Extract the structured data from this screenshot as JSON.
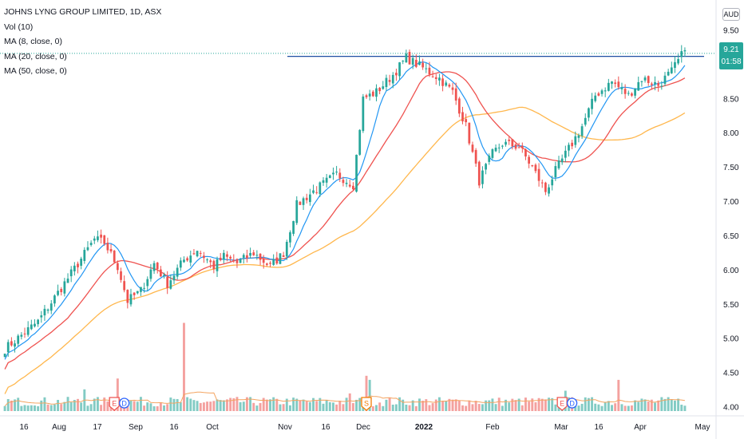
{
  "legend": {
    "title": "JOHNS LYNG GROUP LIMITED, 1D, ASX",
    "vol": "Vol (10)",
    "ma8": "MA (8, close, 0)",
    "ma20": "MA (20, close, 0)",
    "ma50": "MA (50, close, 0)"
  },
  "currency": "AUD",
  "last_price": {
    "price": "9.21",
    "countdown": "01:58"
  },
  "colors": {
    "up": "#26a69a",
    "down": "#ef5350",
    "up_vol": "#82cbc4",
    "down_vol": "#f4a19f",
    "ma8": "#2196f3",
    "ma20": "#ef5350",
    "ma50": "#ffb74d",
    "vol_ma": "#f4a460",
    "resistance": "#1e4fa3",
    "price_line": "#26a69a",
    "event_e": "#ef5350",
    "event_d": "#2962ff",
    "event_s": "#f57c00"
  },
  "chart_data": {
    "type": "candlestick",
    "y_ticks": [
      "9.50",
      "9.00",
      "8.50",
      "8.00",
      "7.50",
      "7.00",
      "6.50",
      "6.00",
      "5.50",
      "5.00",
      "4.50",
      "4.00"
    ],
    "ylim": [
      4.0,
      9.5
    ],
    "x_ticks": [
      "16",
      "Aug",
      "17",
      "Sep",
      "16",
      "Oct",
      "Nov",
      "16",
      "Dec",
      "2022",
      "Feb",
      "Mar",
      "16",
      "Apr",
      "May"
    ],
    "resistance_level": 9.12,
    "last_price": 9.21,
    "price_anchors": [
      [
        0,
        4.85
      ],
      [
        10,
        5.25
      ],
      [
        20,
        5.95
      ],
      [
        27,
        6.45
      ],
      [
        30,
        6.4
      ],
      [
        34,
        6.05
      ],
      [
        37,
        5.55
      ],
      [
        41,
        5.7
      ],
      [
        45,
        6.1
      ],
      [
        49,
        5.8
      ],
      [
        54,
        6.15
      ],
      [
        58,
        6.3
      ],
      [
        63,
        6.05
      ],
      [
        66,
        6.2
      ],
      [
        70,
        6.1
      ],
      [
        75,
        6.25
      ],
      [
        80,
        6.05
      ],
      [
        84,
        6.25
      ],
      [
        88,
        6.95
      ],
      [
        93,
        7.15
      ],
      [
        100,
        7.4
      ],
      [
        105,
        7.25
      ],
      [
        108,
        8.5
      ],
      [
        112,
        8.6
      ],
      [
        117,
        8.85
      ],
      [
        121,
        9.1
      ],
      [
        126,
        8.95
      ],
      [
        131,
        8.8
      ],
      [
        135,
        8.6
      ],
      [
        139,
        8.1
      ],
      [
        143,
        7.3
      ],
      [
        147,
        7.7
      ],
      [
        150,
        7.85
      ],
      [
        155,
        7.8
      ],
      [
        159,
        7.5
      ],
      [
        163,
        7.15
      ],
      [
        166,
        7.45
      ],
      [
        171,
        7.85
      ],
      [
        174,
        8.1
      ],
      [
        178,
        8.55
      ],
      [
        183,
        8.75
      ],
      [
        188,
        8.55
      ],
      [
        192,
        8.8
      ],
      [
        197,
        8.7
      ],
      [
        201,
        8.9
      ],
      [
        205,
        9.21
      ]
    ],
    "n_days": 206,
    "volume_spikes": [
      [
        34,
        2.4
      ],
      [
        54,
        6.5
      ],
      [
        109,
        2.6
      ],
      [
        110,
        2.3
      ],
      [
        169,
        1.5
      ],
      [
        185,
        2.3
      ],
      [
        104,
        1.3
      ],
      [
        24,
        1.6
      ]
    ],
    "events": [
      {
        "label": "E",
        "day": 33
      },
      {
        "label": "D",
        "day": 36
      },
      {
        "label": "S",
        "day": 109
      },
      {
        "label": "E",
        "day": 168
      },
      {
        "label": "D",
        "day": 171
      }
    ]
  }
}
